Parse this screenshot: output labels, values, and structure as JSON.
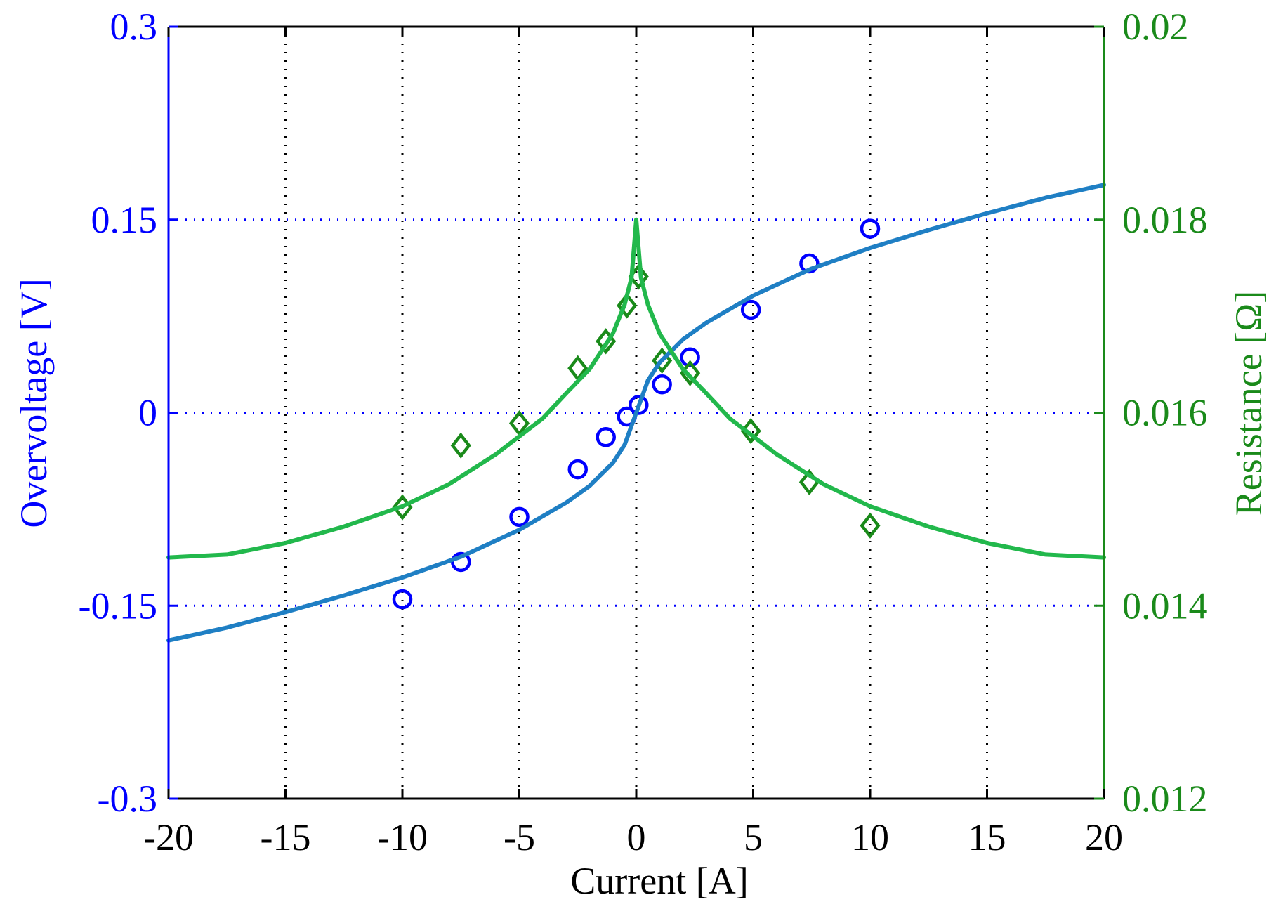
{
  "chart_data": {
    "type": "scatter",
    "title": "",
    "xlabel": "Current [A]",
    "ylabel_left": "Overvoltage [V]",
    "ylabel_right": "Resistance [Ω]",
    "xlim": [
      -20,
      20
    ],
    "ylim_left": [
      -0.3,
      0.3
    ],
    "ylim_right": [
      0.012,
      0.02
    ],
    "x_ticks": [
      "-20",
      "-15",
      "-10",
      "-5",
      "0",
      "5",
      "10",
      "15",
      "20"
    ],
    "x_tick_values": [
      -20,
      -15,
      -10,
      -5,
      0,
      5,
      10,
      15,
      20
    ],
    "y_left_ticks": [
      "0.3",
      "0.15",
      "0",
      "-0.15",
      "-0.3"
    ],
    "y_left_tick_values": [
      0.3,
      0.15,
      0,
      -0.15,
      -0.3
    ],
    "y_right_ticks": [
      "0.02",
      "0.018",
      "0.016",
      "0.014",
      "0.012"
    ],
    "y_right_tick_values": [
      0.02,
      0.018,
      0.016,
      0.014,
      0.012
    ],
    "grid": {
      "vertical": true,
      "horizontal": true,
      "vertical_color": "#000000",
      "horizontal_color": "#0000ff",
      "horizontal_values": [
        0.15,
        0,
        -0.15
      ]
    },
    "colors": {
      "left_axis": "#0000ff",
      "right_axis": "#1a8a1a",
      "overvoltage_fit": "#1f7fc4",
      "resistance_fit": "#22b84c",
      "overvoltage_markers": "#0000ff",
      "resistance_markers": "#1a8a1a"
    },
    "series": [
      {
        "axis": "left",
        "kind": "markers",
        "marker": "circle",
        "x": [
          -10,
          -7.5,
          -5,
          -2.5,
          -1.3,
          -0.4,
          0.1,
          1.1,
          2.3,
          4.9,
          7.4,
          10
        ],
        "y": [
          -0.145,
          -0.116,
          -0.081,
          -0.044,
          -0.019,
          -0.003,
          0.006,
          0.022,
          0.043,
          0.08,
          0.116,
          0.143
        ]
      },
      {
        "axis": "right",
        "kind": "markers",
        "marker": "diamond",
        "x": [
          -10,
          -7.5,
          -5,
          -2.5,
          -1.3,
          -0.4,
          0.1,
          1.1,
          2.3,
          4.9,
          7.4,
          10
        ],
        "y": [
          0.01502,
          0.01566,
          0.01589,
          0.01646,
          0.01674,
          0.01711,
          0.01741,
          0.01654,
          0.01641,
          0.01581,
          0.01528,
          0.01483
        ]
      },
      {
        "axis": "left",
        "kind": "line",
        "x": [
          -20,
          -17.5,
          -15,
          -12.5,
          -10,
          -7.5,
          -5,
          -3,
          -2,
          -1,
          -0.5,
          0,
          0.5,
          1,
          2,
          3,
          5,
          7.5,
          10,
          12.5,
          15,
          17.5,
          20
        ],
        "y": [
          -0.177,
          -0.167,
          -0.155,
          -0.142,
          -0.128,
          -0.112,
          -0.091,
          -0.07,
          -0.057,
          -0.039,
          -0.025,
          0.0,
          0.025,
          0.039,
          0.057,
          0.07,
          0.091,
          0.112,
          0.128,
          0.142,
          0.155,
          0.167,
          0.177
        ]
      },
      {
        "axis": "right",
        "kind": "line",
        "x": [
          -20,
          -17.5,
          -15,
          -12.5,
          -10,
          -8,
          -6,
          -4,
          -3,
          -2,
          -1,
          -0.5,
          -0.2,
          0,
          0.2,
          0.5,
          1,
          2,
          3,
          4,
          6,
          8,
          10,
          12.5,
          15,
          17.5,
          20
        ],
        "y": [
          0.0145,
          0.01453,
          0.01465,
          0.01482,
          0.01503,
          0.01526,
          0.01557,
          0.01594,
          0.0162,
          0.01645,
          0.01682,
          0.01712,
          0.0174,
          0.018,
          0.0174,
          0.01712,
          0.01682,
          0.01645,
          0.0162,
          0.01594,
          0.01557,
          0.01526,
          0.01503,
          0.01482,
          0.01465,
          0.01453,
          0.0145
        ]
      }
    ]
  }
}
